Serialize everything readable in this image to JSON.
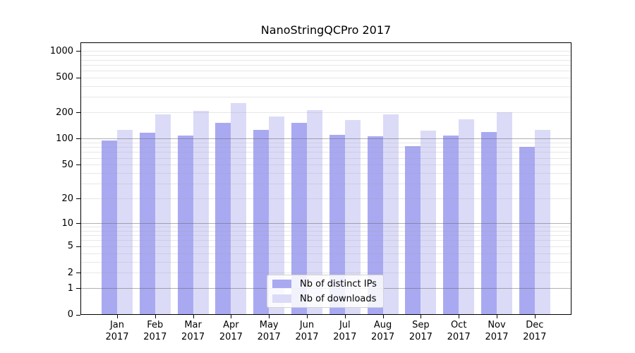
{
  "chart_data": {
    "type": "bar",
    "title": "NanoStringQCPro 2017",
    "categories": [
      "Jan",
      "Feb",
      "Mar",
      "Apr",
      "May",
      "Jun",
      "Jul",
      "Aug",
      "Sep",
      "Oct",
      "Nov",
      "Dec"
    ],
    "category_year": "2017",
    "series": [
      {
        "name": "Nb of distinct IPs",
        "color": "#a9a9f2",
        "values": [
          95,
          117,
          108,
          152,
          127,
          153,
          110,
          106,
          82,
          109,
          120,
          81
        ]
      },
      {
        "name": "Nb of downloads",
        "color": "#dbdbf8",
        "values": [
          126,
          191,
          208,
          257,
          181,
          214,
          162,
          188,
          123,
          168,
          200,
          127
        ]
      }
    ],
    "xlabel": "",
    "ylabel": "",
    "y_axis": {
      "scale": "log1p",
      "tick_values": [
        0,
        1,
        2,
        5,
        10,
        20,
        50,
        100,
        200,
        500,
        1000
      ],
      "range": [
        0,
        1000
      ]
    },
    "grid": {
      "enabled": true,
      "major_values": [
        1,
        10,
        100
      ],
      "minor_pattern": "2-9 per decade plus 1000"
    },
    "legend": {
      "position": "bottom-center",
      "entries": [
        "Nb of distinct IPs",
        "Nb of downloads"
      ]
    }
  },
  "colors": {
    "background": "#ffffff",
    "bar_distinct_ips": "#a9a9f2",
    "bar_downloads": "#dbdbf8",
    "axis": "#000000",
    "grid_major": "#b1b1b1",
    "grid_minor": "#e7e7e7",
    "legend_border": "#d2d2d2"
  }
}
